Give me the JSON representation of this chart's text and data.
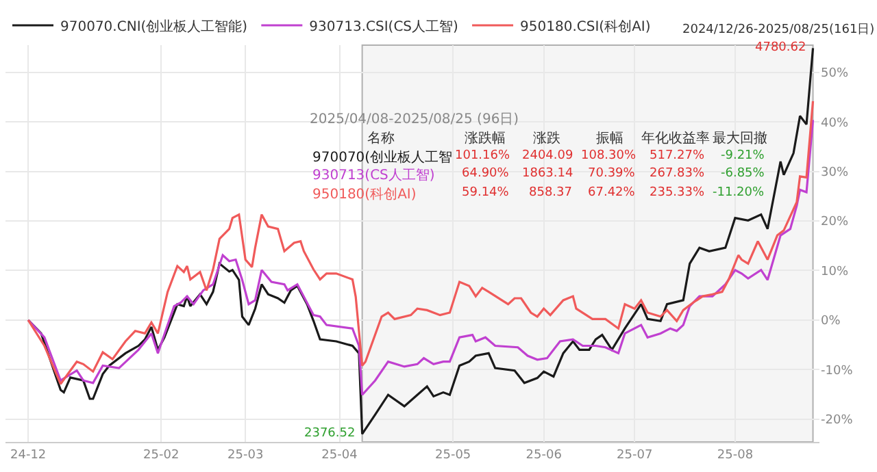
{
  "chart_data": [
    {
      "type": "line",
      "legend": "top left",
      "grid": true,
      "marker": "none",
      "line_style": "solid",
      "xlim": [
        "2024-12-19",
        "2025-08-27"
      ],
      "xticks": [
        {
          "value": "2024-12-26",
          "label": "24-12"
        },
        {
          "value": "2025-02-05",
          "label": "25-02"
        },
        {
          "value": "2025-03-03",
          "label": "25-03"
        },
        {
          "value": "2025-04-01",
          "label": "25-04"
        },
        {
          "value": "2025-05-06",
          "label": "25-05"
        },
        {
          "value": "2025-06-03",
          "label": "25-06"
        },
        {
          "value": "2025-07-01",
          "label": "25-07"
        },
        {
          "value": "2025-08-01",
          "label": "25-08"
        }
      ],
      "ylim": [
        -24.6,
        55.5
      ],
      "yticks": [
        {
          "value": -20,
          "label": "-20%"
        },
        {
          "value": -10,
          "label": "-10%"
        },
        {
          "value": 0,
          "label": "0%"
        },
        {
          "value": 10,
          "label": "10%"
        },
        {
          "value": 20,
          "label": "20%"
        },
        {
          "value": 30,
          "label": "30%"
        },
        {
          "value": 40,
          "label": "40%"
        },
        {
          "value": 50,
          "label": "50%"
        }
      ],
      "bands": [
        {
          "axis": "x",
          "from": "2025-04-08",
          "to": "2025-08-25",
          "color": "#f5f5f5"
        }
      ],
      "annotations": [
        {
          "text": "4780.62",
          "x": "2025-08-25",
          "y": 54.9
        },
        {
          "text": "2376.52",
          "x": "2025-04-08",
          "y": -23.0
        },
        "2024/12/26-2025/08/25(161日)"
      ],
      "series": [
        {
          "name": "970070.CNI(创业板人工智能)",
          "color": "#1a1a1a",
          "x": [
            "2024-12-26",
            "2024-12-30",
            "2025-01-05",
            "2025-01-06",
            "2025-01-08",
            "2025-01-12",
            "2025-01-14",
            "2025-01-15",
            "2025-01-18",
            "2025-01-20",
            "2025-01-25",
            "2025-01-29",
            "2025-01-31",
            "2025-02-02",
            "2025-02-04",
            "2025-02-06",
            "2025-02-09",
            "2025-02-10",
            "2025-02-12",
            "2025-02-13",
            "2025-02-14",
            "2025-02-17",
            "2025-02-19",
            "2025-02-21",
            "2025-02-23",
            "2025-02-26",
            "2025-02-27",
            "2025-03-01",
            "2025-03-02",
            "2025-03-04",
            "2025-03-06",
            "2025-03-08",
            "2025-03-10",
            "2025-03-13",
            "2025-03-15",
            "2025-03-17",
            "2025-03-19",
            "2025-03-22",
            "2025-03-24",
            "2025-03-26",
            "2025-03-31",
            "2025-04-05",
            "2025-04-07",
            "2025-04-08",
            "2025-04-12",
            "2025-04-16",
            "2025-04-21",
            "2025-04-25",
            "2025-04-28",
            "2025-04-30",
            "2025-05-03",
            "2025-05-05",
            "2025-05-08",
            "2025-05-11",
            "2025-05-13",
            "2025-05-17",
            "2025-05-19",
            "2025-05-25",
            "2025-05-28",
            "2025-06-01",
            "2025-06-03",
            "2025-06-06",
            "2025-06-09",
            "2025-06-12",
            "2025-06-14",
            "2025-06-17",
            "2025-06-19",
            "2025-06-21",
            "2025-06-24",
            "2025-06-28",
            "2025-07-03",
            "2025-07-05",
            "2025-07-09",
            "2025-07-11",
            "2025-07-16",
            "2025-07-18",
            "2025-07-21",
            "2025-07-24",
            "2025-07-29",
            "2025-08-01",
            "2025-08-05",
            "2025-08-09",
            "2025-08-11",
            "2025-08-15",
            "2025-08-16",
            "2025-08-19",
            "2025-08-21",
            "2025-08-23",
            "2025-08-25"
          ],
          "values": [
            0,
            -2.7,
            -14.1,
            -14.6,
            -11.6,
            -12.2,
            -15.9,
            -15.9,
            -10.9,
            -9.2,
            -6.7,
            -5.2,
            -3.9,
            -1.4,
            -6,
            -3.5,
            1.5,
            3.2,
            2.8,
            4.8,
            2.8,
            5.2,
            3.2,
            5.7,
            11.4,
            9.8,
            10.1,
            8.1,
            0.7,
            -1,
            2.3,
            7.2,
            5.2,
            4.4,
            3.5,
            6,
            6.9,
            3.2,
            -0.2,
            -3.9,
            -4.3,
            -5.2,
            -6.7,
            -23.0,
            -19.1,
            -15.1,
            -17.4,
            -15.1,
            -13.4,
            -15.4,
            -14.6,
            -15.1,
            -9.2,
            -8.4,
            -7.2,
            -6.7,
            -9.7,
            -10.2,
            -12.7,
            -11.7,
            -10.4,
            -11.4,
            -6.7,
            -4.3,
            -6,
            -6,
            -3.9,
            -3,
            -6,
            -1.7,
            3.2,
            0.2,
            -0.2,
            3.2,
            4,
            11.4,
            14.6,
            13.9,
            14.6,
            20.6,
            20.1,
            21.3,
            18.4,
            32,
            29.3,
            33.7,
            41.2,
            39.5,
            54.9
          ]
        },
        {
          "name": "930713.CSI(CS人工智)",
          "color": "#c040d0",
          "x": [
            "2024-12-26",
            "2024-12-31",
            "2025-01-05",
            "2025-01-10",
            "2025-01-12",
            "2025-01-15",
            "2025-01-18",
            "2025-01-23",
            "2025-01-29",
            "2025-02-02",
            "2025-02-04",
            "2025-02-09",
            "2025-02-11",
            "2025-02-13",
            "2025-02-15",
            "2025-02-18",
            "2025-02-21",
            "2025-02-24",
            "2025-02-26",
            "2025-02-28",
            "2025-03-02",
            "2025-03-04",
            "2025-03-06",
            "2025-03-08",
            "2025-03-11",
            "2025-03-15",
            "2025-03-16",
            "2025-03-19",
            "2025-03-24",
            "2025-03-26",
            "2025-03-28",
            "2025-04-05",
            "2025-04-07",
            "2025-04-08",
            "2025-04-12",
            "2025-04-16",
            "2025-04-21",
            "2025-04-25",
            "2025-04-27",
            "2025-04-30",
            "2025-05-03",
            "2025-05-05",
            "2025-05-08",
            "2025-05-12",
            "2025-05-13",
            "2025-05-16",
            "2025-05-19",
            "2025-05-26",
            "2025-05-29",
            "2025-06-01",
            "2025-06-04",
            "2025-06-08",
            "2025-06-12",
            "2025-06-15",
            "2025-06-19",
            "2025-06-22",
            "2025-06-26",
            "2025-06-28",
            "2025-07-03",
            "2025-07-05",
            "2025-07-09",
            "2025-07-12",
            "2025-07-14",
            "2025-07-16",
            "2025-07-18",
            "2025-07-21",
            "2025-07-25",
            "2025-07-29",
            "2025-08-01",
            "2025-08-03",
            "2025-08-05",
            "2025-08-09",
            "2025-08-11",
            "2025-08-15",
            "2025-08-18",
            "2025-08-20",
            "2025-08-21",
            "2025-08-23",
            "2025-08-25"
          ],
          "values": [
            0,
            -3.5,
            -12.2,
            -10.2,
            -12.2,
            -12.7,
            -9.2,
            -9.7,
            -6,
            -2.7,
            -6.7,
            2.8,
            3.5,
            4.8,
            3.2,
            6,
            7.2,
            13.1,
            11.9,
            12.2,
            8.1,
            3.2,
            4,
            10.1,
            7.7,
            7.2,
            6,
            7.2,
            1,
            0.7,
            -1,
            -1.7,
            -5.2,
            -15.1,
            -12.2,
            -8.4,
            -9.4,
            -8.9,
            -7.7,
            -8.9,
            -8.4,
            -8.4,
            -3.5,
            -3,
            -4.3,
            -3.5,
            -5.2,
            -5.5,
            -7.2,
            -8,
            -7.7,
            -4.3,
            -3.9,
            -5.2,
            -5.2,
            -5.5,
            -6.7,
            -2.7,
            -1,
            -3.5,
            -2.7,
            -1.7,
            -2.2,
            -1,
            2.8,
            4.8,
            4.8,
            7.2,
            10.1,
            9.4,
            8.4,
            10.1,
            8.1,
            17.1,
            18.4,
            23.1,
            26.3,
            25.8,
            40.4
          ]
        },
        {
          "name": "950180.CSI(科创AI)",
          "color": "#f05a5a",
          "x": [
            "2024-12-26",
            "2024-12-31",
            "2025-01-05",
            "2025-01-10",
            "2025-01-12",
            "2025-01-15",
            "2025-01-18",
            "2025-01-21",
            "2025-01-25",
            "2025-01-28",
            "2025-01-31",
            "2025-02-02",
            "2025-02-04",
            "2025-02-07",
            "2025-02-10",
            "2025-02-12",
            "2025-02-13",
            "2025-02-14",
            "2025-02-17",
            "2025-02-19",
            "2025-02-21",
            "2025-02-23",
            "2025-02-26",
            "2025-02-27",
            "2025-03-01",
            "2025-03-03",
            "2025-03-05",
            "2025-03-06",
            "2025-03-08",
            "2025-03-10",
            "2025-03-13",
            "2025-03-15",
            "2025-03-18",
            "2025-03-20",
            "2025-03-21",
            "2025-03-24",
            "2025-03-26",
            "2025-03-28",
            "2025-03-31",
            "2025-04-05",
            "2025-04-06",
            "2025-04-08",
            "2025-04-09",
            "2025-04-14",
            "2025-04-16",
            "2025-04-18",
            "2025-04-23",
            "2025-04-25",
            "2025-04-28",
            "2025-05-02",
            "2025-05-05",
            "2025-05-08",
            "2025-05-11",
            "2025-05-13",
            "2025-05-15",
            "2025-05-17",
            "2025-05-23",
            "2025-05-25",
            "2025-05-27",
            "2025-05-30",
            "2025-06-01",
            "2025-06-03",
            "2025-06-05",
            "2025-06-09",
            "2025-06-12",
            "2025-06-13",
            "2025-06-18",
            "2025-06-22",
            "2025-06-26",
            "2025-06-28",
            "2025-07-01",
            "2025-07-03",
            "2025-07-05",
            "2025-07-09",
            "2025-07-11",
            "2025-07-14",
            "2025-07-16",
            "2025-07-19",
            "2025-07-22",
            "2025-07-25",
            "2025-07-28",
            "2025-07-30",
            "2025-08-02",
            "2025-08-03",
            "2025-08-05",
            "2025-08-08",
            "2025-08-11",
            "2025-08-14",
            "2025-08-16",
            "2025-08-20",
            "2025-08-21",
            "2025-08-23",
            "2025-08-25"
          ],
          "values": [
            0,
            -5.2,
            -12.9,
            -8.4,
            -8.9,
            -10.4,
            -6.5,
            -7.9,
            -4.3,
            -2.2,
            -2.7,
            -0.5,
            -2.7,
            5.7,
            10.9,
            9.7,
            10.9,
            8.2,
            9.7,
            6,
            10.2,
            16.4,
            18.4,
            20.6,
            21.3,
            12.2,
            10.7,
            14.6,
            21.3,
            18.9,
            18.4,
            13.9,
            15.6,
            15.9,
            13.9,
            10.2,
            8.2,
            9.4,
            9.4,
            8.2,
            4.7,
            -9.2,
            -8.4,
            0.7,
            1.5,
            0.2,
            1,
            2.3,
            2,
            1,
            1.5,
            7.7,
            6.9,
            4.8,
            6.5,
            5.7,
            3.2,
            4.4,
            4.4,
            1.5,
            0.7,
            2.3,
            1,
            4,
            4.8,
            2.3,
            0.2,
            0.2,
            -1.7,
            3.2,
            2.3,
            4,
            1.5,
            0.7,
            2,
            -0.2,
            2,
            3.5,
            4.8,
            5.2,
            5.7,
            8.2,
            13.1,
            12.2,
            11.4,
            15.9,
            12.2,
            17.1,
            18.1,
            23.8,
            29,
            28.8,
            44.2
          ]
        }
      ]
    },
    {
      "type": "other",
      "title": "2025/04/08-2025/08/25 (96日)",
      "categories": [
        "名称",
        "涨跌幅",
        "涨跌",
        "振幅",
        "年化收益率",
        "最大回撤"
      ],
      "colors": [
        "#1a1a1a",
        "#c040d0",
        "#f05a5a"
      ],
      "cell_labels": [
        [
          "970070(创业板人工智",
          "101.16%",
          "2404.09",
          "108.30%",
          "517.27%",
          "-9.21%"
        ],
        [
          "930713(CS人工智)",
          "64.90%",
          "1863.14",
          "70.39%",
          "267.83%",
          "-6.85%"
        ],
        [
          "950180(科创AI)",
          "59.14%",
          "858.37",
          "67.42%",
          "235.33%",
          "-11.20%"
        ]
      ]
    }
  ]
}
